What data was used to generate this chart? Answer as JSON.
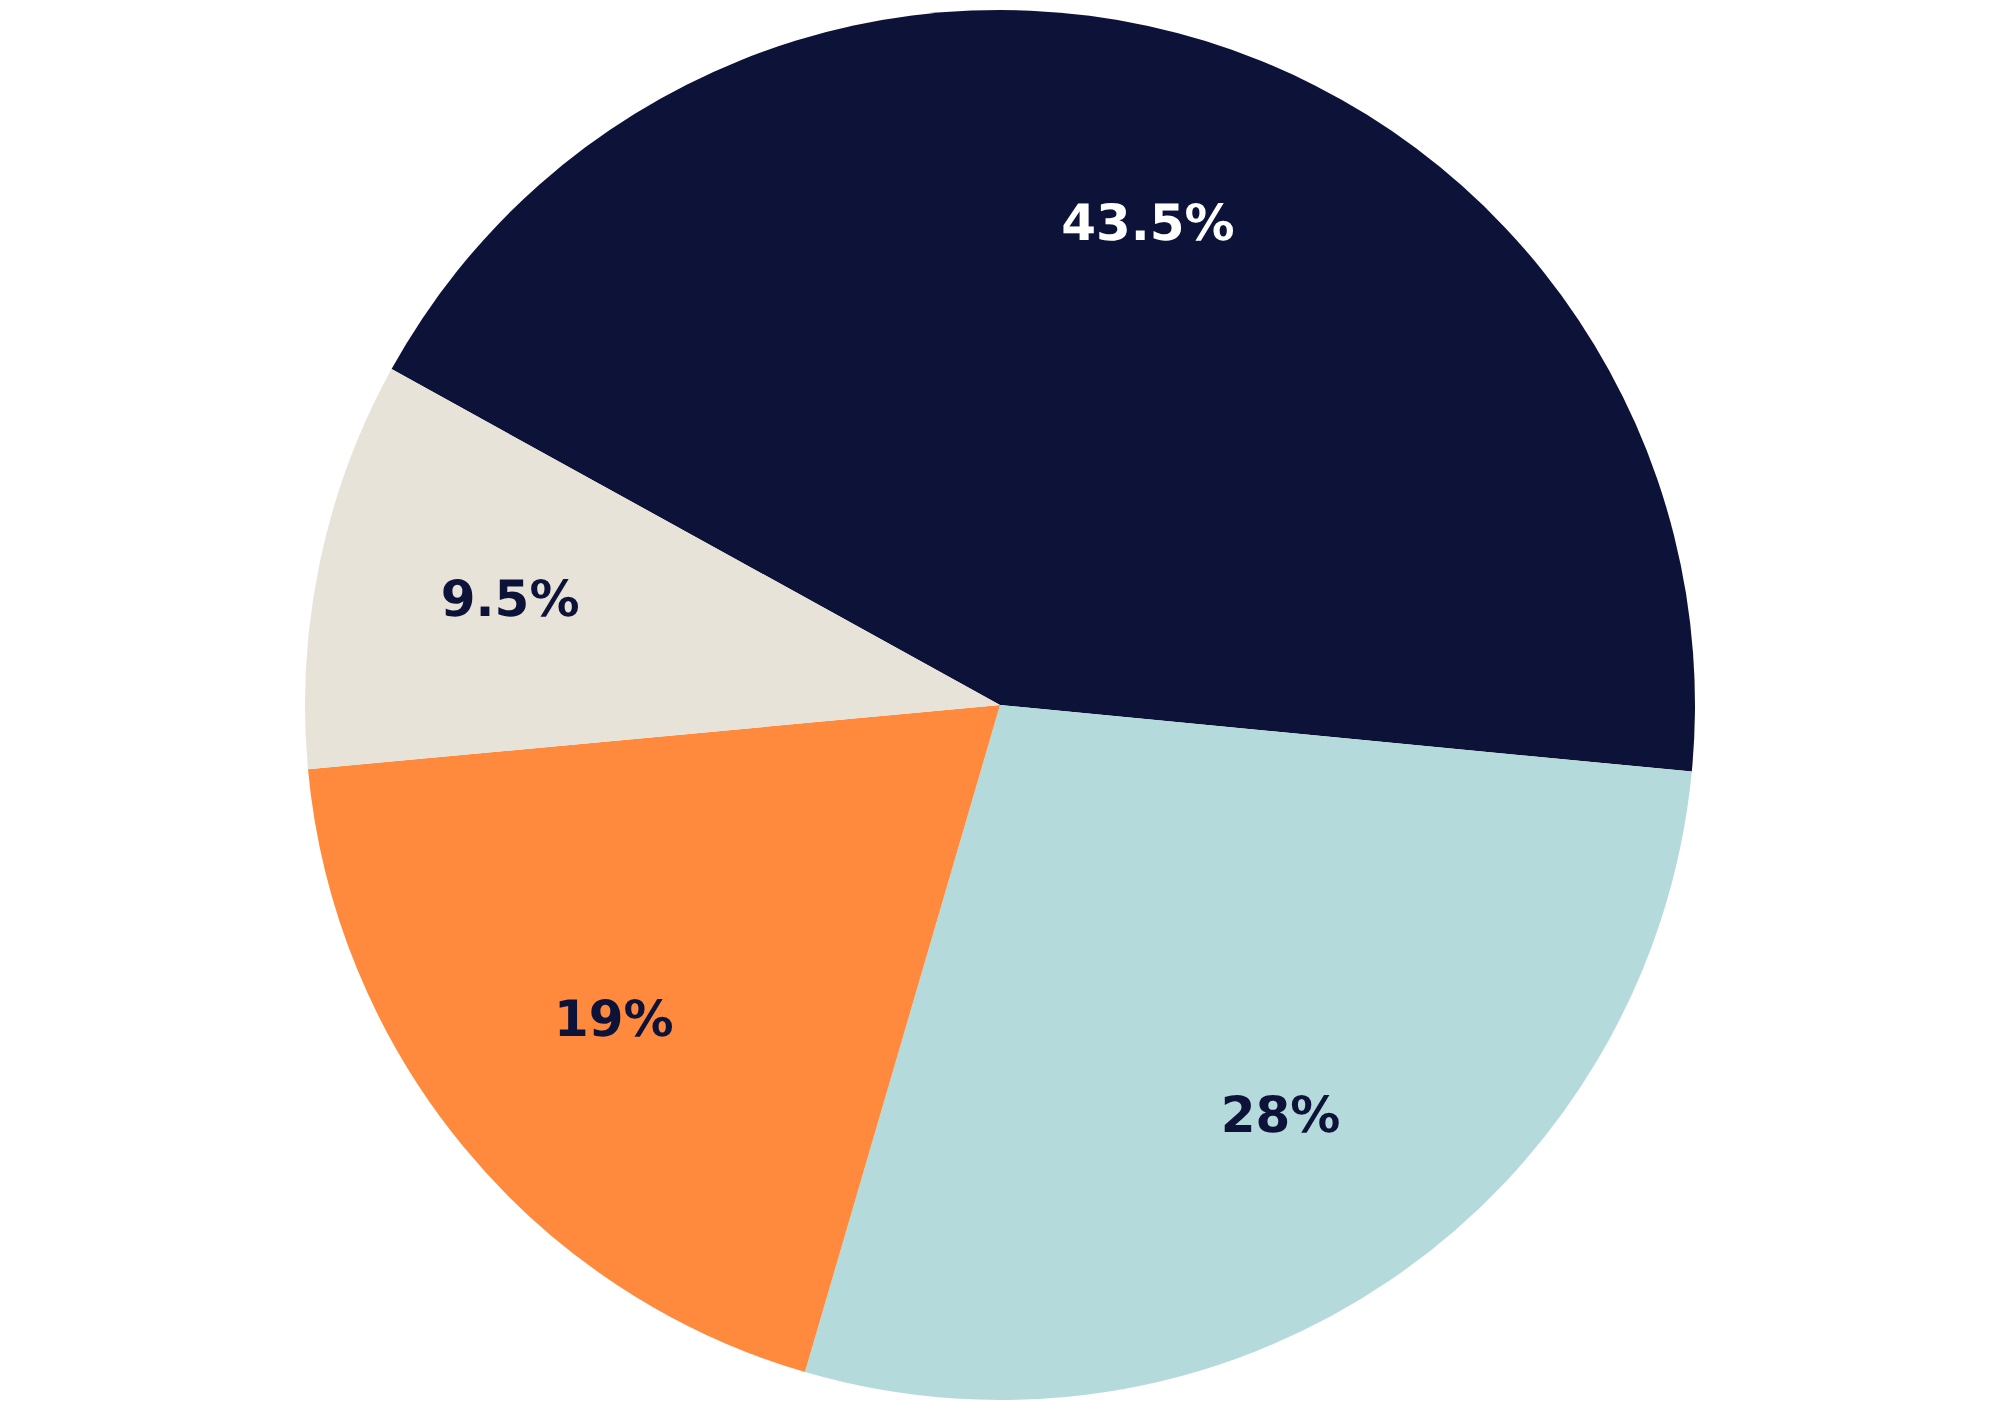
{
  "chart_data": {
    "type": "pie",
    "categories": [
      null,
      null,
      null,
      null
    ],
    "values": [
      43.5,
      28,
      19,
      9.5
    ],
    "colors": [
      "#0d1238",
      "#b5dadb",
      "#ff8a3d",
      "#e8e3d8"
    ],
    "value_labels": [
      "43.5%",
      "28%",
      "19%",
      "9.5%"
    ]
  }
}
